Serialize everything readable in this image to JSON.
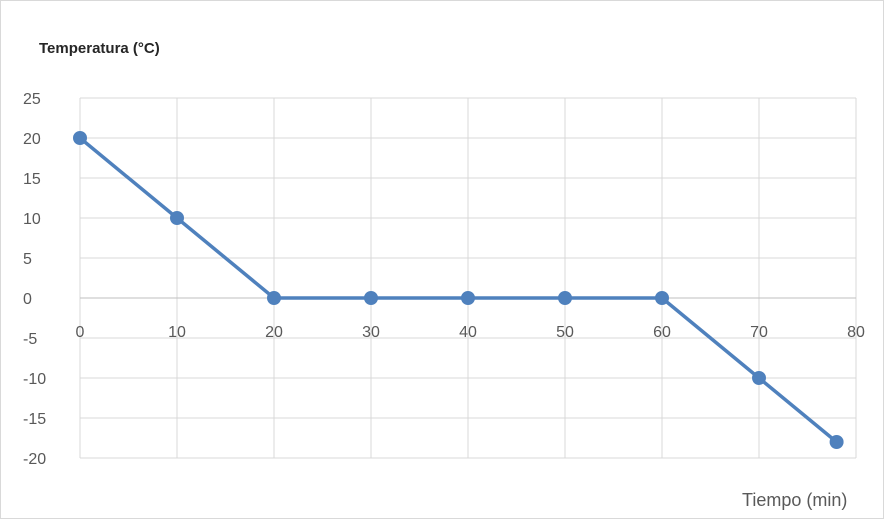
{
  "chart_data": {
    "type": "line",
    "title": "",
    "ylabel": "Temperatura (°C)",
    "xlabel": "Tiempo (min)",
    "xlim": [
      0,
      80
    ],
    "ylim": [
      -20,
      25
    ],
    "x_ticks": [
      0,
      10,
      20,
      30,
      40,
      50,
      60,
      70,
      80
    ],
    "y_ticks": [
      25,
      20,
      15,
      10,
      5,
      0,
      -5,
      -10,
      -15,
      -20
    ],
    "grid": true,
    "legend": "none",
    "series": [
      {
        "color": "#4f81bd",
        "x": [
          0,
          10,
          20,
          30,
          40,
          50,
          60,
          70,
          78
        ],
        "y": [
          20,
          10,
          0,
          0,
          0,
          0,
          0,
          -10,
          -18
        ]
      }
    ]
  }
}
